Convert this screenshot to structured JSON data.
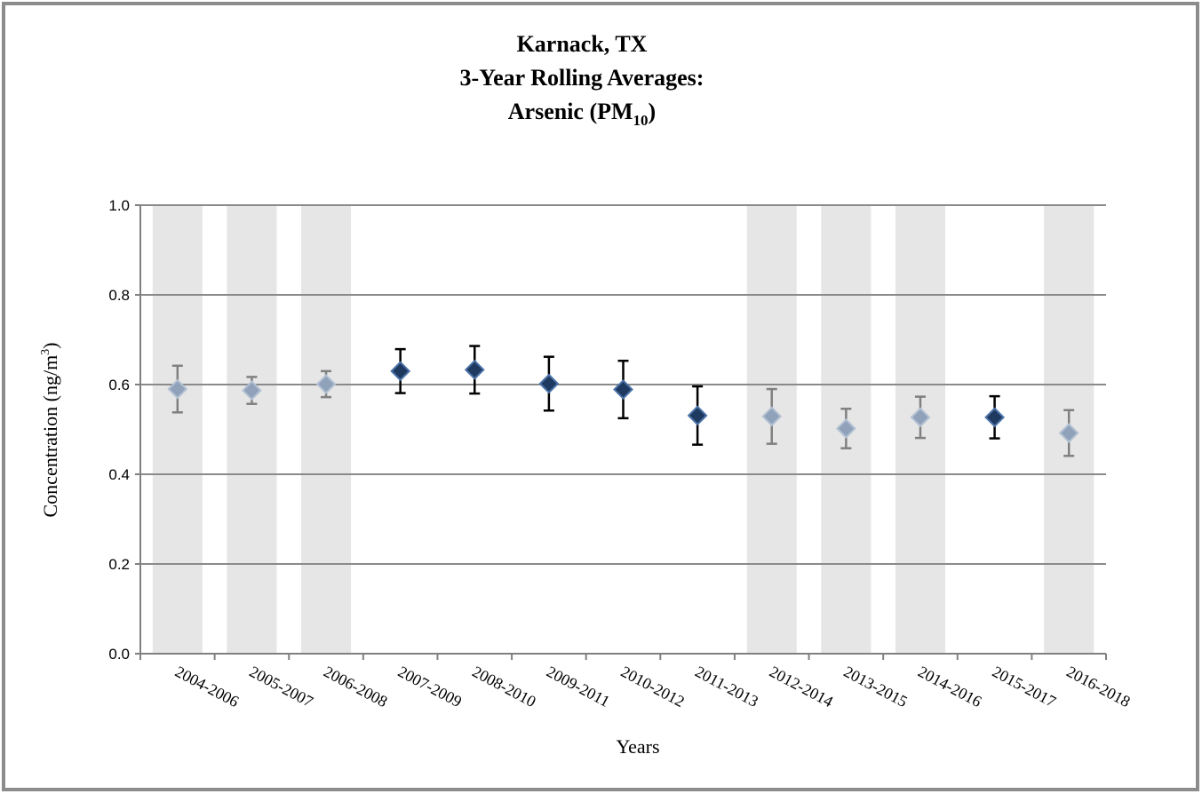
{
  "chart_data": {
    "type": "errorbar",
    "title": [
      "Karnack, TX",
      "3-Year Rolling Averages:",
      [
        "Arsenic (PM",
        "10",
        ")"
      ]
    ],
    "x_label": "Years",
    "y_label": [
      "Concentration (ng/m",
      "3",
      ")"
    ],
    "categories": [
      "2004-2006",
      "2005-2007",
      "2006-2008",
      "2007-2009",
      "2008-2010",
      "2009-2011",
      "2010-2012",
      "2011-2013",
      "2012-2014",
      "2013-2015",
      "2014-2016",
      "2015-2017",
      "2016-2018"
    ],
    "values": [
      0.59,
      0.587,
      0.601,
      0.63,
      0.633,
      0.602,
      0.589,
      0.531,
      0.529,
      0.502,
      0.527,
      0.527,
      0.492
    ],
    "errors": [
      0.052,
      0.03,
      0.029,
      0.049,
      0.053,
      0.06,
      0.064,
      0.065,
      0.061,
      0.044,
      0.046,
      0.047,
      0.051
    ],
    "point_colors": [
      "#8fa2ba",
      "#8fa2ba",
      "#8fa2ba",
      "#1f3a60",
      "#1f3a60",
      "#1f3a60",
      "#1f3a60",
      "#1f3a60",
      "#8fa2ba",
      "#8fa2ba",
      "#8fa2ba",
      "#1f3a60",
      "#8fa2ba"
    ],
    "errorbar_colors": [
      "#808080",
      "#808080",
      "#808080",
      "#000000",
      "#000000",
      "#000000",
      "#000000",
      "#000000",
      "#808080",
      "#808080",
      "#808080",
      "#000000",
      "#808080"
    ],
    "shaded": [
      true,
      true,
      true,
      false,
      false,
      false,
      false,
      false,
      true,
      true,
      true,
      false,
      true
    ],
    "band_color": "#e6e6e6",
    "ylim": [
      0,
      1
    ],
    "yticks": [
      {
        "value": 0,
        "label": "0.0"
      },
      0.2,
      0.4,
      0.6,
      0.8,
      {
        "value": 1,
        "label": "1.0"
      }
    ],
    "grid": true
  }
}
